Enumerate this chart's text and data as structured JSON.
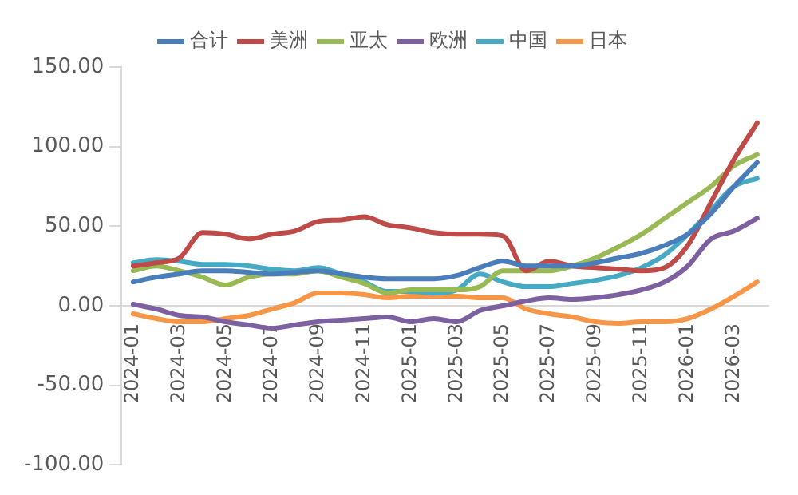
{
  "chart_data": {
    "type": "line",
    "categories": [
      "2024-01",
      null,
      "2024-03",
      null,
      "2024-05",
      null,
      "2024-07",
      null,
      "2024-09",
      null,
      "2024-11",
      null,
      "2025-01",
      null,
      "2025-03",
      null,
      "2025-05",
      null,
      "2025-07",
      null,
      "2025-09",
      null,
      "2025-11",
      null,
      "2026-01",
      null,
      "2026-03",
      null
    ],
    "series": [
      {
        "name": "合计",
        "color": "#4a7ebb",
        "values": [
          15,
          18,
          20,
          22,
          22,
          21,
          20,
          21,
          22,
          20,
          18,
          17,
          17,
          17,
          19,
          24,
          28,
          25,
          25,
          25,
          27,
          30,
          33,
          38,
          45,
          58,
          75,
          90
        ]
      },
      {
        "name": "美洲",
        "color": "#be4b48",
        "values": [
          25,
          27,
          30,
          46,
          45,
          42,
          45,
          47,
          53,
          54,
          56,
          51,
          49,
          46,
          45,
          45,
          44,
          22,
          28,
          25,
          24,
          23,
          22,
          24,
          38,
          65,
          92,
          115
        ]
      },
      {
        "name": "亚太",
        "color": "#98b954",
        "values": [
          22,
          25,
          22,
          18,
          13,
          18,
          20,
          20,
          22,
          18,
          14,
          8,
          10,
          10,
          10,
          12,
          22,
          22,
          22,
          25,
          30,
          37,
          45,
          55,
          65,
          75,
          88,
          95
        ]
      },
      {
        "name": "欧洲",
        "color": "#7d60a0",
        "values": [
          1,
          -2,
          -6,
          -7,
          -10,
          -12,
          -14,
          -12,
          -10,
          -9,
          -8,
          -7,
          -10,
          -8,
          -10,
          -3,
          0,
          3,
          5,
          4,
          5,
          7,
          10,
          15,
          25,
          42,
          47,
          55
        ]
      },
      {
        "name": "中国",
        "color": "#46aac5",
        "values": [
          27,
          29,
          28,
          26,
          26,
          25,
          23,
          22,
          24,
          20,
          15,
          9,
          9,
          8,
          10,
          20,
          15,
          12,
          12,
          14,
          16,
          19,
          24,
          32,
          45,
          60,
          75,
          80
        ]
      },
      {
        "name": "日本",
        "color": "#f79646",
        "values": [
          -5,
          -8,
          -10,
          -10,
          -8,
          -6,
          -2,
          2,
          8,
          8,
          7,
          5,
          6,
          6,
          6,
          5,
          5,
          -2,
          -5,
          -7,
          -10,
          -11,
          -10,
          -10,
          -8,
          -2,
          6,
          15
        ]
      }
    ],
    "ylim": [
      -100,
      150
    ],
    "yticks": [
      {
        "value": -100,
        "label": "-100.00"
      },
      {
        "value": -50,
        "label": "-50.00"
      },
      {
        "value": 0,
        "label": "0.00"
      },
      {
        "value": 50,
        "label": "50.00"
      },
      {
        "value": 100,
        "label": "100.00"
      },
      {
        "value": 150,
        "label": "150.00"
      }
    ],
    "grid": false,
    "legend": "top",
    "marker": "none",
    "line_style": "solid"
  }
}
